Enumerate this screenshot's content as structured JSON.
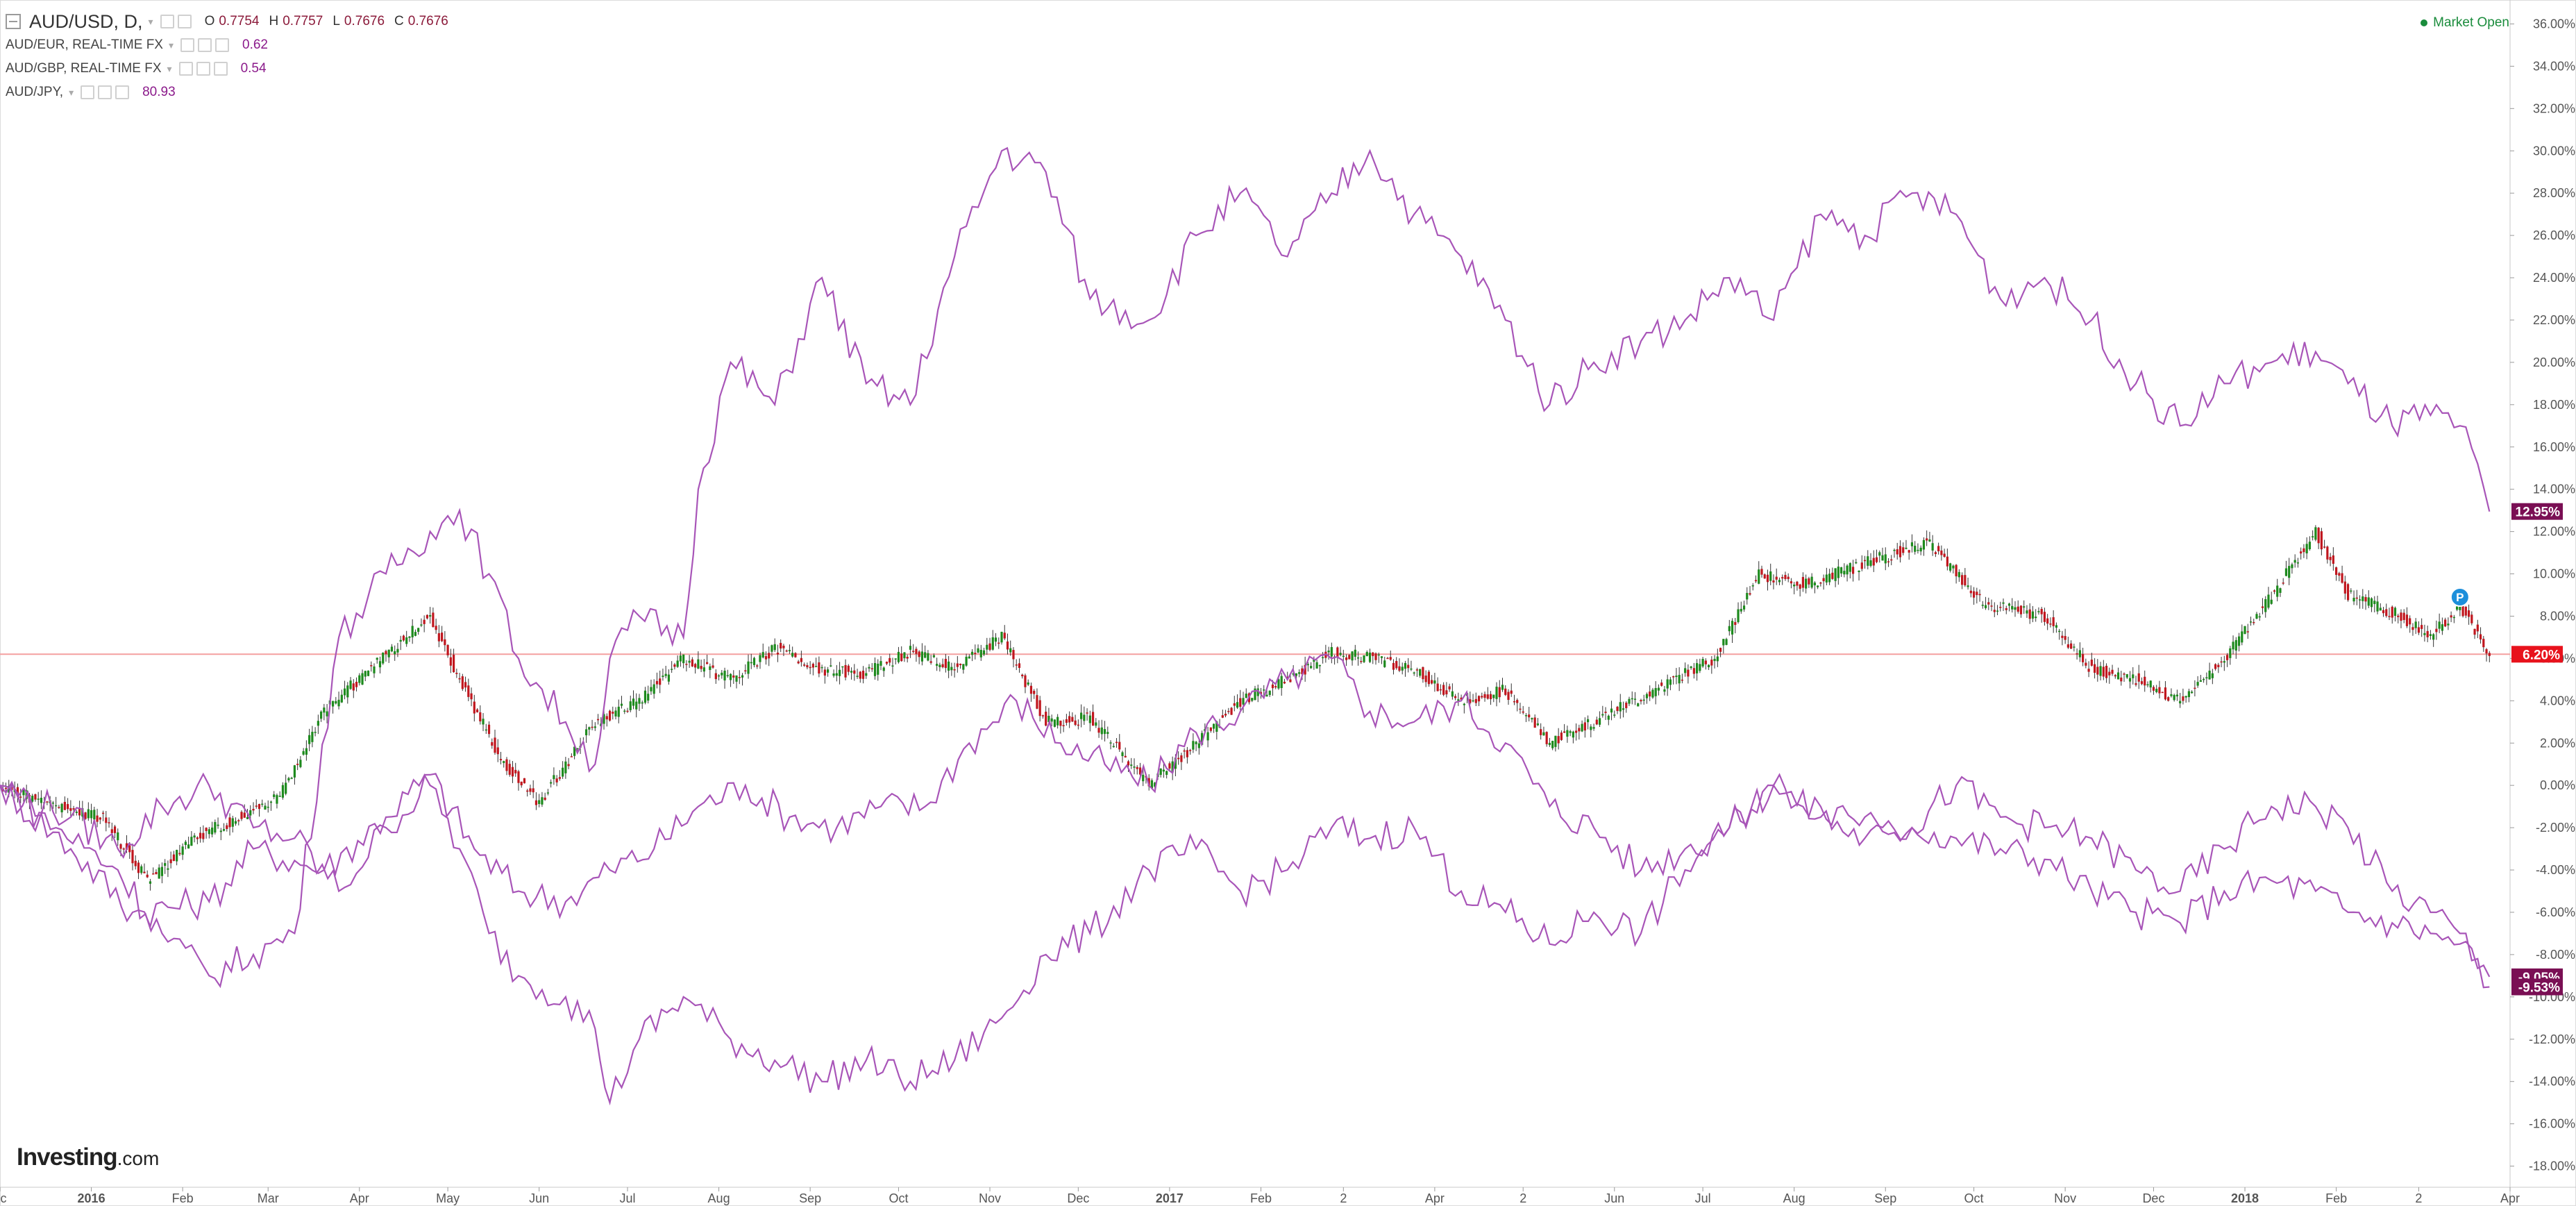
{
  "legend": {
    "main": {
      "symbol": "AUD/USD, D,",
      "o_label": "O",
      "o": "0.7754",
      "h_label": "H",
      "h": "0.7757",
      "l_label": "L",
      "l": "0.7676",
      "c_label": "C",
      "c": "0.7676"
    },
    "compare": [
      {
        "symbol": "AUD/EUR, REAL-TIME FX",
        "value": "0.62"
      },
      {
        "symbol": "AUD/GBP, REAL-TIME FX",
        "value": "0.54"
      },
      {
        "symbol": "AUD/JPY,",
        "value": "80.93"
      }
    ]
  },
  "status": {
    "market_open": "Market Open"
  },
  "branding": {
    "logo_main": "Investing",
    "logo_suffix": ".com"
  },
  "colors": {
    "up": "#1d8a1d",
    "down": "#c0161e",
    "compare_line": "#a855b8",
    "last_line": "#f4a0a0",
    "tag_main": "#e8121c",
    "tag_compare": "#7a0f54"
  },
  "chart_data": {
    "type": "line",
    "y_unit": "%",
    "ylim": [
      -19,
      37
    ],
    "y_ticks": [
      "36.00%",
      "34.00%",
      "32.00%",
      "30.00%",
      "28.00%",
      "26.00%",
      "24.00%",
      "22.00%",
      "20.00%",
      "18.00%",
      "16.00%",
      "14.00%",
      "12.00%",
      "10.00%",
      "8.00%",
      "6.00%",
      "4.00%",
      "2.00%",
      "0.00%",
      "-2.00%",
      "-4.00%",
      "-6.00%",
      "-8.00%",
      "-10.00%",
      "-12.00%",
      "-14.00%",
      "-16.00%",
      "-18.00%"
    ],
    "x_ticks": [
      {
        "label": "ec",
        "date": "2015-12-01"
      },
      {
        "label": "2016",
        "date": "2016-01-01",
        "bold": true
      },
      {
        "label": "Feb",
        "date": "2016-02-01"
      },
      {
        "label": "Mar",
        "date": "2016-03-01"
      },
      {
        "label": "Apr",
        "date": "2016-04-01"
      },
      {
        "label": "May",
        "date": "2016-05-01"
      },
      {
        "label": "Jun",
        "date": "2016-06-01"
      },
      {
        "label": "Jul",
        "date": "2016-07-01"
      },
      {
        "label": "Aug",
        "date": "2016-08-01"
      },
      {
        "label": "Sep",
        "date": "2016-09-01"
      },
      {
        "label": "Oct",
        "date": "2016-10-01"
      },
      {
        "label": "Nov",
        "date": "2016-11-01"
      },
      {
        "label": "Dec",
        "date": "2016-12-01"
      },
      {
        "label": "2017",
        "date": "2017-01-01",
        "bold": true
      },
      {
        "label": "Feb",
        "date": "2017-02-01"
      },
      {
        "label": "2",
        "date": "2017-03-01"
      },
      {
        "label": "Apr",
        "date": "2017-04-01"
      },
      {
        "label": "2",
        "date": "2017-05-01"
      },
      {
        "label": "Jun",
        "date": "2017-06-01"
      },
      {
        "label": "Jul",
        "date": "2017-07-01"
      },
      {
        "label": "Aug",
        "date": "2017-08-01"
      },
      {
        "label": "Sep",
        "date": "2017-09-01"
      },
      {
        "label": "Oct",
        "date": "2017-10-01"
      },
      {
        "label": "Nov",
        "date": "2017-11-01"
      },
      {
        "label": "Dec",
        "date": "2017-12-01"
      },
      {
        "label": "2018",
        "date": "2018-01-01",
        "bold": true
      },
      {
        "label": "Feb",
        "date": "2018-02-01"
      },
      {
        "label": "2",
        "date": "2018-03-01"
      },
      {
        "label": "Apr",
        "date": "2018-04-01"
      }
    ],
    "last_value_line": 6.2,
    "last_tags": [
      {
        "label": "12.95%",
        "value": 12.95,
        "color": "#7a0f54"
      },
      {
        "label": "6.20%",
        "value": 6.2,
        "color": "#e8121c"
      },
      {
        "label": "-9.05%",
        "value": -9.05,
        "color": "#7a0f54"
      },
      {
        "label": "-9.53%",
        "value": -9.53,
        "color": "#7a0f54"
      }
    ],
    "marker": {
      "label": "P",
      "date": "2018-03-15",
      "value": 8.9
    },
    "series": [
      {
        "name": "AUD/USD",
        "kind": "candlestick",
        "points": [
          [
            "2015-12-01",
            0
          ],
          [
            "2015-12-20",
            -1
          ],
          [
            "2016-01-05",
            -1.5
          ],
          [
            "2016-01-20",
            -4.5
          ],
          [
            "2016-02-05",
            -2.5
          ],
          [
            "2016-02-20",
            -1.5
          ],
          [
            "2016-03-05",
            -0.5
          ],
          [
            "2016-03-20",
            3.5
          ],
          [
            "2016-04-10",
            6.2
          ],
          [
            "2016-04-25",
            8
          ],
          [
            "2016-05-05",
            5
          ],
          [
            "2016-05-20",
            1
          ],
          [
            "2016-06-01",
            -0.8
          ],
          [
            "2016-06-20",
            3
          ],
          [
            "2016-07-05",
            4
          ],
          [
            "2016-07-20",
            6
          ],
          [
            "2016-08-05",
            5
          ],
          [
            "2016-08-20",
            6.5
          ],
          [
            "2016-09-05",
            5.5
          ],
          [
            "2016-09-20",
            5.3
          ],
          [
            "2016-10-05",
            6.3
          ],
          [
            "2016-10-20",
            5.5
          ],
          [
            "2016-11-05",
            7
          ],
          [
            "2016-11-20",
            3
          ],
          [
            "2016-12-05",
            3.2
          ],
          [
            "2016-12-25",
            0
          ],
          [
            "2017-01-10",
            2
          ],
          [
            "2017-01-25",
            4
          ],
          [
            "2017-02-10",
            5
          ],
          [
            "2017-02-25",
            6.3
          ],
          [
            "2017-03-10",
            6
          ],
          [
            "2017-03-25",
            5.5
          ],
          [
            "2017-04-10",
            4
          ],
          [
            "2017-04-25",
            4.5
          ],
          [
            "2017-05-10",
            2
          ],
          [
            "2017-05-25",
            3
          ],
          [
            "2017-06-15",
            4.5
          ],
          [
            "2017-07-05",
            6
          ],
          [
            "2017-07-20",
            10
          ],
          [
            "2017-08-05",
            9.5
          ],
          [
            "2017-08-25",
            10.5
          ],
          [
            "2017-09-15",
            11.5
          ],
          [
            "2017-10-05",
            8.5
          ],
          [
            "2017-10-25",
            8
          ],
          [
            "2017-11-10",
            5.5
          ],
          [
            "2017-11-25",
            5
          ],
          [
            "2017-12-10",
            4
          ],
          [
            "2017-12-25",
            6
          ],
          [
            "2018-01-10",
            9
          ],
          [
            "2018-01-25",
            12
          ],
          [
            "2018-02-05",
            9
          ],
          [
            "2018-02-20",
            8.2
          ],
          [
            "2018-03-05",
            7
          ],
          [
            "2018-03-15",
            8.5
          ],
          [
            "2018-03-25",
            6.2
          ]
        ]
      },
      {
        "name": "AUD/EUR",
        "kind": "line",
        "points": [
          [
            "2015-12-01",
            0
          ],
          [
            "2015-12-25",
            -3
          ],
          [
            "2016-01-15",
            -6
          ],
          [
            "2016-02-10",
            -5.5
          ],
          [
            "2016-02-25",
            -3
          ],
          [
            "2016-03-20",
            -4
          ],
          [
            "2016-04-10",
            -1.5
          ],
          [
            "2016-04-25",
            0.5
          ],
          [
            "2016-05-10",
            -3
          ],
          [
            "2016-05-25",
            -5
          ],
          [
            "2016-06-10",
            -5.5
          ],
          [
            "2016-06-25",
            -4
          ],
          [
            "2016-07-10",
            -3
          ],
          [
            "2016-07-25",
            -1
          ],
          [
            "2016-08-10",
            0
          ],
          [
            "2016-08-25",
            -1.5
          ],
          [
            "2016-09-10",
            -2
          ],
          [
            "2016-09-25",
            -1
          ],
          [
            "2016-10-10",
            -1
          ],
          [
            "2016-10-25",
            2
          ],
          [
            "2016-11-10",
            4
          ],
          [
            "2016-11-25",
            2
          ],
          [
            "2016-12-10",
            1
          ],
          [
            "2016-12-25",
            0
          ],
          [
            "2017-01-10",
            2.5
          ],
          [
            "2017-01-25",
            3.5
          ],
          [
            "2017-02-10",
            5
          ],
          [
            "2017-02-25",
            6
          ],
          [
            "2017-03-10",
            3.5
          ],
          [
            "2017-03-25",
            3
          ],
          [
            "2017-04-10",
            4
          ],
          [
            "2017-04-25",
            2
          ],
          [
            "2017-05-10",
            -1
          ],
          [
            "2017-05-25",
            -2
          ],
          [
            "2017-06-10",
            -4
          ],
          [
            "2017-06-25",
            -3
          ],
          [
            "2017-07-10",
            -2
          ],
          [
            "2017-07-25",
            0
          ],
          [
            "2017-08-10",
            -1.5
          ],
          [
            "2017-08-25",
            -2.5
          ],
          [
            "2017-09-10",
            -2
          ],
          [
            "2017-09-25",
            -2.5
          ],
          [
            "2017-10-10",
            -3
          ],
          [
            "2017-10-25",
            -3.5
          ],
          [
            "2017-11-10",
            -5
          ],
          [
            "2017-11-25",
            -6
          ],
          [
            "2017-12-10",
            -6.5
          ],
          [
            "2017-12-25",
            -5
          ],
          [
            "2018-01-10",
            -4.5
          ],
          [
            "2018-01-25",
            -5
          ],
          [
            "2018-02-05",
            -6
          ],
          [
            "2018-02-20",
            -6.5
          ],
          [
            "2018-03-05",
            -7
          ],
          [
            "2018-03-15",
            -7.5
          ],
          [
            "2018-03-25",
            -9.05
          ]
        ]
      },
      {
        "name": "AUD/GBP",
        "kind": "line",
        "points": [
          [
            "2015-12-01",
            0
          ],
          [
            "2015-12-25",
            -1.5
          ],
          [
            "2016-01-10",
            -3
          ],
          [
            "2016-01-25",
            -1
          ],
          [
            "2016-02-10",
            0
          ],
          [
            "2016-02-25",
            -2
          ],
          [
            "2016-03-10",
            -2.5
          ],
          [
            "2016-03-25",
            -5
          ],
          [
            "2016-04-10",
            -2
          ],
          [
            "2016-04-25",
            0
          ],
          [
            "2016-05-05",
            -3
          ],
          [
            "2016-05-15",
            -7
          ],
          [
            "2016-05-25",
            -9
          ],
          [
            "2016-06-10",
            -10
          ],
          [
            "2016-06-20",
            -11.5
          ],
          [
            "2016-06-25",
            -15
          ],
          [
            "2016-07-05",
            -12
          ],
          [
            "2016-07-20",
            -10
          ],
          [
            "2016-08-05",
            -12
          ],
          [
            "2016-08-20",
            -13
          ],
          [
            "2016-09-05",
            -14
          ],
          [
            "2016-09-20",
            -13
          ],
          [
            "2016-10-05",
            -14
          ],
          [
            "2016-10-20",
            -13
          ],
          [
            "2016-11-05",
            -11
          ],
          [
            "2016-11-20",
            -8
          ],
          [
            "2016-12-05",
            -7
          ],
          [
            "2016-12-25",
            -4
          ],
          [
            "2017-01-10",
            -3
          ],
          [
            "2017-01-25",
            -5
          ],
          [
            "2017-02-10",
            -4
          ],
          [
            "2017-02-25",
            -2
          ],
          [
            "2017-03-10",
            -2.5
          ],
          [
            "2017-03-25",
            -2
          ],
          [
            "2017-04-10",
            -5
          ],
          [
            "2017-04-25",
            -6
          ],
          [
            "2017-05-10",
            -7.5
          ],
          [
            "2017-05-25",
            -6
          ],
          [
            "2017-06-10",
            -7
          ],
          [
            "2017-06-25",
            -4
          ],
          [
            "2017-07-10",
            -2
          ],
          [
            "2017-07-25",
            0
          ],
          [
            "2017-08-10",
            -1
          ],
          [
            "2017-08-25",
            -1.5
          ],
          [
            "2017-09-10",
            -2
          ],
          [
            "2017-09-25",
            0
          ],
          [
            "2017-10-10",
            -1.5
          ],
          [
            "2017-10-25",
            -2
          ],
          [
            "2017-11-10",
            -2.5
          ],
          [
            "2017-11-25",
            -4
          ],
          [
            "2017-12-10",
            -5
          ],
          [
            "2017-12-25",
            -3
          ],
          [
            "2018-01-10",
            -1
          ],
          [
            "2018-01-25",
            -1
          ],
          [
            "2018-02-05",
            -2
          ],
          [
            "2018-02-20",
            -5
          ],
          [
            "2018-03-05",
            -6
          ],
          [
            "2018-03-15",
            -7
          ],
          [
            "2018-03-25",
            -9.53
          ]
        ]
      },
      {
        "name": "AUD/JPY",
        "kind": "line",
        "points": [
          [
            "2015-12-01",
            0
          ],
          [
            "2015-12-20",
            -2
          ],
          [
            "2016-01-10",
            -4
          ],
          [
            "2016-01-25",
            -7
          ],
          [
            "2016-02-10",
            -9
          ],
          [
            "2016-02-25",
            -8
          ],
          [
            "2016-03-10",
            -7
          ],
          [
            "2016-03-25",
            7
          ],
          [
            "2016-04-10",
            10
          ],
          [
            "2016-04-25",
            12
          ],
          [
            "2016-05-05",
            13
          ],
          [
            "2016-05-15",
            10
          ],
          [
            "2016-05-25",
            6
          ],
          [
            "2016-06-10",
            3
          ],
          [
            "2016-06-20",
            1
          ],
          [
            "2016-06-25",
            6
          ],
          [
            "2016-07-05",
            8
          ],
          [
            "2016-07-20",
            7
          ],
          [
            "2016-07-25",
            14
          ],
          [
            "2016-08-05",
            20
          ],
          [
            "2016-08-20",
            18
          ],
          [
            "2016-09-05",
            24
          ],
          [
            "2016-09-20",
            19
          ],
          [
            "2016-10-05",
            18
          ],
          [
            "2016-10-20",
            25
          ],
          [
            "2016-11-05",
            30
          ],
          [
            "2016-11-20",
            29
          ],
          [
            "2016-12-05",
            23
          ],
          [
            "2016-12-25",
            22
          ],
          [
            "2017-01-10",
            26
          ],
          [
            "2017-01-25",
            28
          ],
          [
            "2017-02-10",
            25
          ],
          [
            "2017-02-25",
            28
          ],
          [
            "2017-03-10",
            30
          ],
          [
            "2017-03-25",
            27
          ],
          [
            "2017-04-10",
            25
          ],
          [
            "2017-04-25",
            22
          ],
          [
            "2017-05-10",
            18
          ],
          [
            "2017-05-25",
            20
          ],
          [
            "2017-06-10",
            21
          ],
          [
            "2017-06-25",
            22
          ],
          [
            "2017-07-10",
            24
          ],
          [
            "2017-07-25",
            22
          ],
          [
            "2017-08-10",
            27
          ],
          [
            "2017-08-25",
            26
          ],
          [
            "2017-09-10",
            28
          ],
          [
            "2017-09-25",
            27
          ],
          [
            "2017-10-10",
            23
          ],
          [
            "2017-10-25",
            24
          ],
          [
            "2017-11-10",
            22
          ],
          [
            "2017-11-25",
            19
          ],
          [
            "2017-12-10",
            17
          ],
          [
            "2017-12-25",
            19
          ],
          [
            "2018-01-10",
            20
          ],
          [
            "2018-01-25",
            20.5
          ],
          [
            "2018-02-05",
            19
          ],
          [
            "2018-02-20",
            17
          ],
          [
            "2018-03-05",
            17.5
          ],
          [
            "2018-03-15",
            17
          ],
          [
            "2018-03-25",
            12.95
          ]
        ]
      }
    ]
  }
}
